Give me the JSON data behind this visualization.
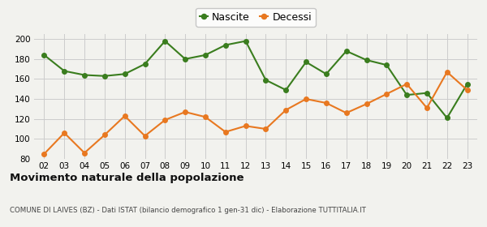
{
  "years": [
    "02",
    "03",
    "04",
    "05",
    "06",
    "07",
    "08",
    "09",
    "10",
    "11",
    "12",
    "13",
    "14",
    "15",
    "16",
    "17",
    "18",
    "19",
    "20",
    "21",
    "22",
    "23"
  ],
  "nascite": [
    184,
    168,
    164,
    163,
    165,
    175,
    198,
    180,
    184,
    194,
    198,
    159,
    149,
    177,
    165,
    188,
    179,
    174,
    144,
    146,
    121,
    155
  ],
  "decessi": [
    85,
    106,
    86,
    104,
    123,
    103,
    119,
    127,
    122,
    107,
    113,
    110,
    129,
    140,
    136,
    126,
    135,
    145,
    155,
    131,
    167,
    149
  ],
  "nascite_color": "#3a7d1e",
  "decessi_color": "#e87820",
  "background_color": "#f2f2ee",
  "grid_color": "#cccccc",
  "ylim": [
    80,
    205
  ],
  "yticks": [
    80,
    100,
    120,
    140,
    160,
    180,
    200
  ],
  "title": "Movimento naturale della popolazione",
  "subtitle": "COMUNE DI LAIVES (BZ) - Dati ISTAT (bilancio demografico 1 gen-31 dic) - Elaborazione TUTTITALIA.IT",
  "legend_nascite": "Nascite",
  "legend_decessi": "Decessi"
}
